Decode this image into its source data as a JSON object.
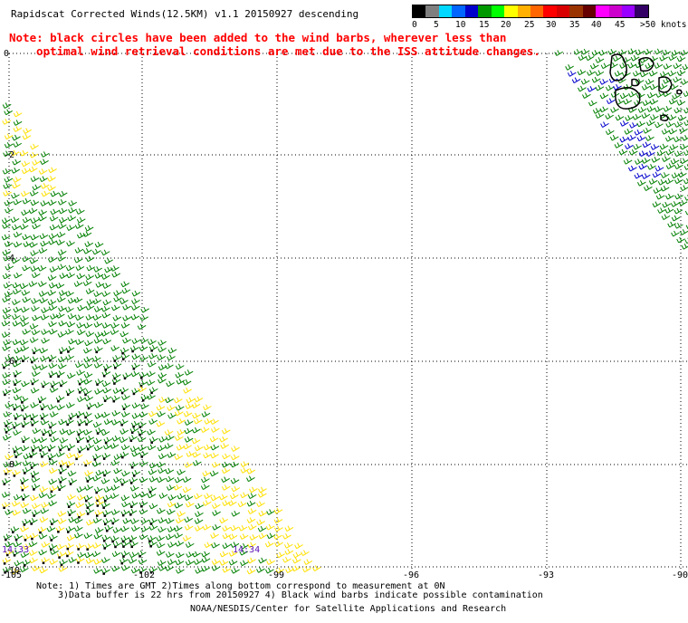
{
  "title": "Rapidscat Corrected Winds(12.5KM) v1.1 20150927 descending",
  "note": {
    "line1": "Note: black circles have been added to the wind barbs, wherever less than",
    "line2": "optimal wind retrieval conditions are met due to the ISS attitude changes."
  },
  "legend": {
    "colors": [
      "#000000",
      "#7f7f7f",
      "#00d8ff",
      "#0066ff",
      "#0000cc",
      "#009900",
      "#00ff00",
      "#ffff00",
      "#ffb000",
      "#ff6600",
      "#ff0000",
      "#d80000",
      "#993300",
      "#660000",
      "#ff00ff",
      "#cc00cc",
      "#9900ff",
      "#330066"
    ],
    "labels": [
      "0",
      "5",
      "10",
      "15",
      "20",
      "25",
      "30",
      "35",
      "40",
      "45",
      ">50 knots"
    ]
  },
  "map": {
    "lon_ticks": [
      "-105",
      "-102",
      "-99",
      "-96",
      "-93",
      "-90"
    ],
    "lat_ticks": [
      "-10",
      "-8",
      "-6",
      "-4",
      "-2",
      "0"
    ],
    "time_labels": [
      "14:33",
      "14:34"
    ],
    "barb_colors": {
      "green": "#008000",
      "yellow": "#ffe000",
      "blue": "#0000cc",
      "black": "#000000"
    }
  },
  "footer": {
    "line1": "Note: 1) Times are GMT 2)Times along bottom correspond to measurement at 0N",
    "line2": "3)Data buffer is 22 hrs from 20150927 4) Black wind barbs indicate possible contamination",
    "credit": "NOAA/NESDIS/Center for Satellite Applications and Research"
  }
}
